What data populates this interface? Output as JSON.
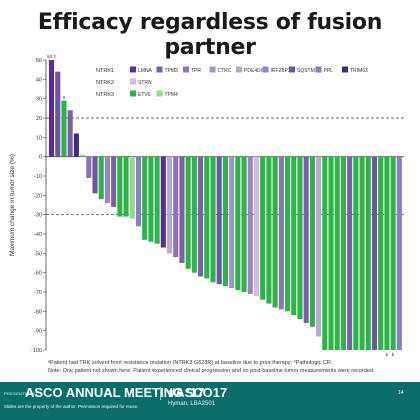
{
  "title": "Efficacy regardless of fusion partner",
  "footnotes": {
    "line1": "ᵃPatient had TRK solvent front resistance mutation (NTRK3 G623R) at baseline due to prior therapy; ᵇPathologic CR",
    "line2": "Note: One patient not shown here. Patient experienced clinical progression and no post-baseline tumor measurements were recorded."
  },
  "banner": {
    "presented_at": "PRESENTED AT:",
    "meeting": "ASCO ANNUAL MEETING '17",
    "hashtag": "#ASCO17",
    "slides_note": "Slides are the property of the author. Permission required for reuse.",
    "presenter": "Hyman, LBA2501",
    "page": "14"
  },
  "colors": {
    "NTRK1": "#5b2d8e",
    "LMNA": "#5b2d8e",
    "TPM3": "#7c5fa8",
    "TPR": "#8d72b4",
    "CTRC": "#a394c4",
    "PDE4DIP": "#b7aad2",
    "IRF2BP2": "#9a85c0",
    "SQSTM1": "#6e55a3",
    "PPL": "#8e7cbe",
    "TRIM63": "#3c2c86",
    "STRN": "#d9b8e6",
    "ETV6": "#2db34a",
    "TPM4": "#8fdc8f",
    "banner": "#0a6d6a"
  },
  "chart_data": {
    "type": "bar",
    "ylabel": "Maximum change in tumor size (%)",
    "ylim": [
      -100,
      50
    ],
    "yticks": [
      50,
      40,
      30,
      20,
      10,
      0,
      -10,
      -20,
      -30,
      -40,
      -50,
      -60,
      -70,
      -80,
      -90,
      -100
    ],
    "reference_lines": [
      20,
      -30
    ],
    "legend": {
      "groups": [
        {
          "gene": "NTRK1",
          "partners": [
            "LMNA",
            "TPM3",
            "TPR",
            "CTRC",
            "PDE4DIP",
            "IRF2BP2",
            "SQSTM1",
            "PPL",
            "TRIM63"
          ]
        },
        {
          "gene": "NTRK2",
          "partners": [
            "STRN"
          ]
        },
        {
          "gene": "NTRK3",
          "partners": [
            "ETV6",
            "TPM4"
          ]
        }
      ],
      "placement": "top-right"
    },
    "bars": [
      {
        "value": 50,
        "partner": "LMNA",
        "label": "50.2"
      },
      {
        "value": 44,
        "partner": "SQSTM1"
      },
      {
        "value": 29,
        "partner": "ETV6",
        "label": "a"
      },
      {
        "value": 24,
        "partner": "TPM3"
      },
      {
        "value": 12,
        "partner": "TRIM63"
      },
      {
        "value": 1,
        "partner": "TPM4"
      },
      {
        "value": -11,
        "partner": "TPR"
      },
      {
        "value": -19,
        "partner": "SQSTM1"
      },
      {
        "value": -22,
        "partner": "ETV6"
      },
      {
        "value": -24,
        "partner": "IRF2BP2"
      },
      {
        "value": -26,
        "partner": "TPM3"
      },
      {
        "value": -31,
        "partner": "ETV6"
      },
      {
        "value": -31,
        "partner": "ETV6"
      },
      {
        "value": -32,
        "partner": "TPM4"
      },
      {
        "value": -36,
        "partner": "PPL"
      },
      {
        "value": -43,
        "partner": "ETV6"
      },
      {
        "value": -44,
        "partner": "ETV6"
      },
      {
        "value": -45,
        "partner": "ETV6"
      },
      {
        "value": -47,
        "partner": "LMNA"
      },
      {
        "value": -50,
        "partner": "PDE4DIP"
      },
      {
        "value": -52,
        "partner": "TPR"
      },
      {
        "value": -55,
        "partner": "TPM3"
      },
      {
        "value": -58,
        "partner": "ETV6"
      },
      {
        "value": -60,
        "partner": "ETV6"
      },
      {
        "value": -62,
        "partner": "TPM3"
      },
      {
        "value": -63,
        "partner": "ETV6"
      },
      {
        "value": -65,
        "partner": "ETV6"
      },
      {
        "value": -66,
        "partner": "SQSTM1"
      },
      {
        "value": -67,
        "partner": "ETV6"
      },
      {
        "value": -68,
        "partner": "CTRC"
      },
      {
        "value": -69,
        "partner": "ETV6"
      },
      {
        "value": -70,
        "partner": "ETV6"
      },
      {
        "value": -71,
        "partner": "IRF2BP2"
      },
      {
        "value": -72,
        "partner": "STRN"
      },
      {
        "value": -74,
        "partner": "ETV6"
      },
      {
        "value": -76,
        "partner": "ETV6"
      },
      {
        "value": -78,
        "partner": "ETV6"
      },
      {
        "value": -79,
        "partner": "TPR"
      },
      {
        "value": -80,
        "partner": "ETV6"
      },
      {
        "value": -82,
        "partner": "ETV6"
      },
      {
        "value": -84,
        "partner": "ETV6"
      },
      {
        "value": -86,
        "partner": "TPM3"
      },
      {
        "value": -88,
        "partner": "ETV6"
      },
      {
        "value": -93,
        "partner": "PDE4DIP"
      },
      {
        "value": -100,
        "partner": "ETV6"
      },
      {
        "value": -100,
        "partner": "ETV6"
      },
      {
        "value": -100,
        "partner": "ETV6"
      },
      {
        "value": -100,
        "partner": "ETV6"
      },
      {
        "value": -100,
        "partner": "TPM3"
      },
      {
        "value": -100,
        "partner": "ETV6"
      },
      {
        "value": -100,
        "partner": "ETV6"
      },
      {
        "value": -100,
        "partner": "ETV6"
      },
      {
        "value": -100,
        "partner": "SQSTM1"
      },
      {
        "value": -100,
        "partner": "ETV6"
      },
      {
        "value": -100,
        "partner": "ETV6",
        "label": "b"
      },
      {
        "value": -100,
        "partner": "ETV6",
        "label": "b"
      },
      {
        "value": -100,
        "partner": "PPL"
      }
    ]
  }
}
